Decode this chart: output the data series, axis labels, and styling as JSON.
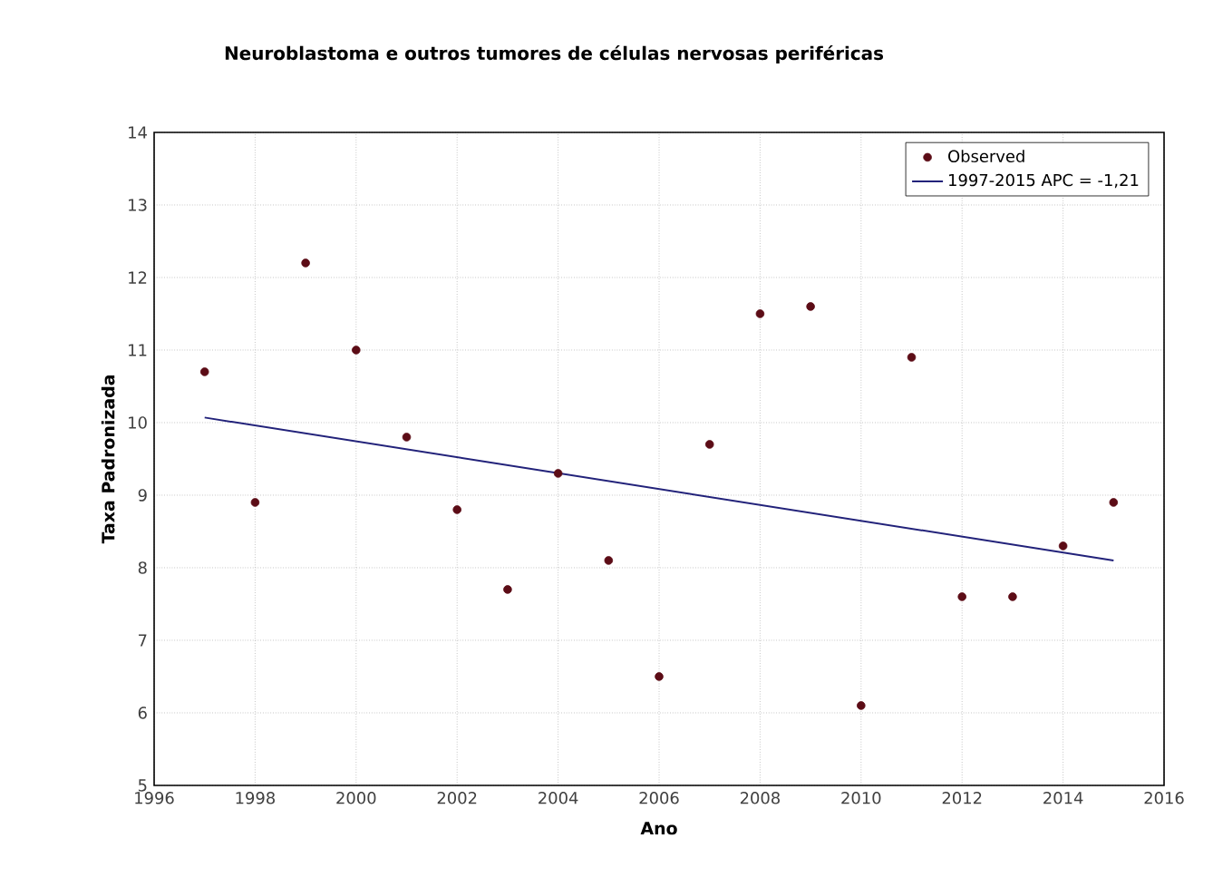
{
  "chart_data": {
    "type": "scatter",
    "title": "Neuroblastoma e outros tumores de células nervosas periféricas",
    "xlabel": "Ano",
    "ylabel": "Taxa Padronizada",
    "xlim": [
      1996,
      2016
    ],
    "xticks": [
      1996,
      1998,
      2000,
      2002,
      2004,
      2006,
      2008,
      2010,
      2012,
      2014,
      2016
    ],
    "ylim": [
      5,
      14
    ],
    "yticks": [
      5,
      6,
      7,
      8,
      9,
      10,
      11,
      12,
      13,
      14
    ],
    "grid": true,
    "legend": "top right",
    "series": [
      {
        "name": "Observed",
        "color": "#5c0c16",
        "x": [
          1997,
          1998,
          1999,
          2000,
          2001,
          2002,
          2003,
          2004,
          2005,
          2006,
          2007,
          2008,
          2009,
          2010,
          2011,
          2012,
          2013,
          2014,
          2015
        ],
        "values": [
          10.7,
          8.9,
          12.2,
          11.0,
          9.8,
          8.8,
          7.7,
          9.3,
          8.1,
          6.5,
          9.7,
          11.5,
          11.6,
          6.1,
          10.9,
          7.6,
          7.6,
          8.3,
          8.9
        ]
      },
      {
        "name": "1997-2015 APC  = -1,21",
        "type": "line",
        "marker": "none",
        "line_style": "solid",
        "color": "#22227a",
        "x": [
          1997,
          2015
        ],
        "values": [
          10.07,
          8.1
        ]
      }
    ]
  }
}
